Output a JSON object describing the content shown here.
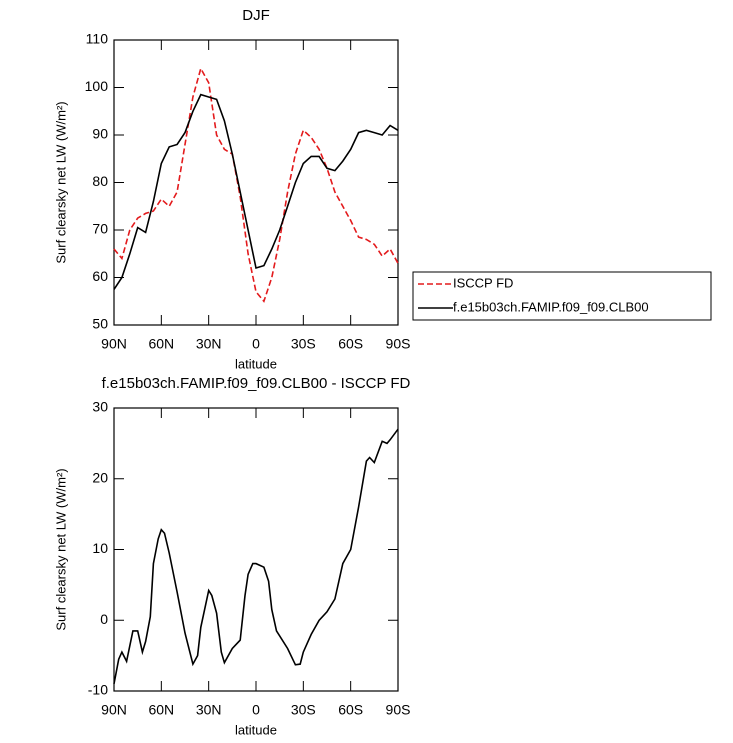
{
  "chart_data": [
    {
      "type": "line",
      "title": "DJF",
      "xlabel": "latitude",
      "ylabel": "Surf clearsky net LW (W/m²)",
      "x": [
        90,
        85,
        80,
        75,
        70,
        65,
        60,
        55,
        50,
        45,
        40,
        35,
        30,
        25,
        20,
        15,
        10,
        5,
        0,
        -5,
        -10,
        -15,
        -20,
        -25,
        -30,
        -35,
        -40,
        -45,
        -50,
        -55,
        -60,
        -65,
        -70,
        -75,
        -80,
        -85,
        -90
      ],
      "series": [
        {
          "name": "ISCCP FD",
          "color": "#e31a1c",
          "linestyle": "dashed",
          "values": [
            66,
            64,
            70,
            72.5,
            73.5,
            74,
            76.5,
            75,
            78,
            88,
            98,
            104,
            101,
            90,
            87,
            86,
            77,
            65,
            57,
            55,
            60,
            68,
            78,
            86,
            91,
            89.5,
            87,
            83,
            78,
            75,
            72,
            68.5,
            68,
            67,
            64.5,
            66,
            63
          ]
        },
        {
          "name": "f.e15b03ch.FAMIP.f09_f09.CLB00",
          "color": "#000000",
          "linestyle": "solid",
          "values": [
            57.5,
            60,
            65,
            70.5,
            69.5,
            76,
            84,
            87.5,
            88,
            90.5,
            95,
            98.5,
            98,
            97.5,
            93,
            86,
            78,
            70,
            62,
            62.5,
            66,
            70,
            75,
            80,
            84,
            85.5,
            85.5,
            83,
            82.5,
            84.5,
            87,
            90.5,
            91,
            90.5,
            90,
            92,
            91
          ]
        }
      ],
      "xlim": [
        90,
        -90
      ],
      "xticks": [
        {
          "value": 90,
          "label": "90N"
        },
        {
          "value": 60,
          "label": "60N"
        },
        {
          "value": 30,
          "label": "30N"
        },
        0,
        {
          "value": -30,
          "label": "30S"
        },
        {
          "value": -60,
          "label": "60S"
        },
        {
          "value": -90,
          "label": "90S"
        }
      ],
      "ylim": [
        50,
        110
      ],
      "yticks": [
        50,
        60,
        70,
        80,
        90,
        100,
        110
      ],
      "legend": "right"
    },
    {
      "type": "line",
      "title": "f.e15b03ch.FAMIP.f09_f09.CLB00 - ISCCP FD",
      "xlabel": "latitude",
      "ylabel": "Surf clearsky net LW (W/m²)",
      "x": [
        90,
        87,
        85,
        82,
        78,
        75,
        72,
        70,
        67,
        65,
        62,
        60,
        58,
        55,
        50,
        45,
        40,
        37,
        35,
        30,
        28,
        25,
        22,
        20,
        15,
        10,
        7,
        5,
        2,
        0,
        -5,
        -8,
        -10,
        -13,
        -20,
        -25,
        -28,
        -30,
        -35,
        -40,
        -45,
        -50,
        -55,
        -60,
        -65,
        -70,
        -72,
        -75,
        -80,
        -83,
        -85,
        -90
      ],
      "series": [
        {
          "color": "#000000",
          "linestyle": "solid",
          "values": [
            -9,
            -5.5,
            -4.5,
            -5.8,
            -1.5,
            -1.5,
            -4.5,
            -3,
            0.5,
            8,
            11.5,
            12.8,
            12.3,
            9.5,
            4,
            -1.8,
            -6.2,
            -5,
            -1,
            4.2,
            3.5,
            1,
            -4.5,
            -6,
            -4,
            -2.8,
            3.5,
            6.5,
            8,
            8,
            7.5,
            5.5,
            1.5,
            -1.5,
            -4,
            -6.3,
            -6.2,
            -4.5,
            -2,
            0,
            1.2,
            3,
            8,
            10,
            16,
            22.5,
            23,
            22.3,
            25.3,
            25,
            25.5,
            27
          ]
        }
      ],
      "xlim": [
        90,
        -90
      ],
      "xticks": [
        {
          "value": 90,
          "label": "90N"
        },
        {
          "value": 60,
          "label": "60N"
        },
        {
          "value": 30,
          "label": "30N"
        },
        0,
        {
          "value": -30,
          "label": "30S"
        },
        {
          "value": -60,
          "label": "60S"
        },
        {
          "value": -90,
          "label": "90S"
        }
      ],
      "ylim": [
        -10,
        30
      ],
      "yticks": [
        -10,
        0,
        10,
        20,
        30
      ]
    }
  ]
}
